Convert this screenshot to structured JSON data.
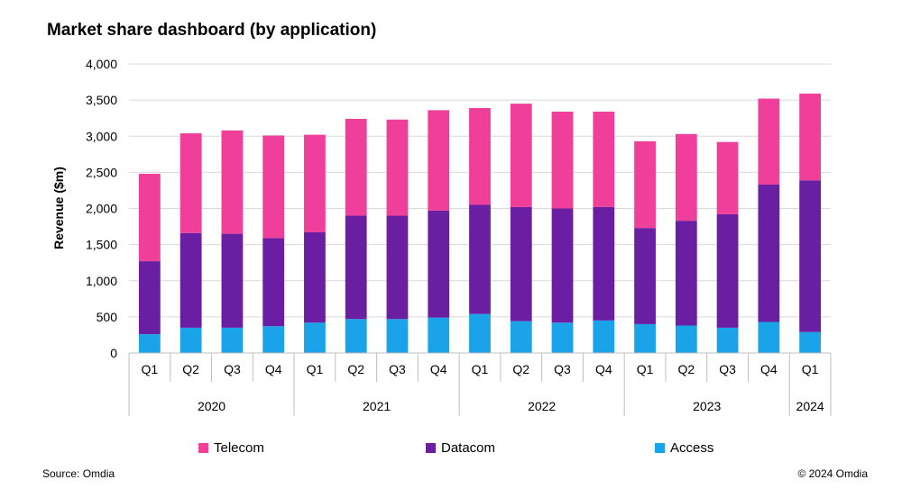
{
  "title": "Market share dashboard (by application)",
  "footer": {
    "source": "Source: Omdia",
    "copyright": "© 2024 Omdia"
  },
  "chart_data": {
    "type": "bar",
    "stacked": true,
    "title": "Market share dashboard (by application)",
    "ylabel": "Revenue ($m)",
    "xlabel": "",
    "ylim": [
      0,
      4000
    ],
    "yticks": [
      0,
      500,
      1000,
      1500,
      2000,
      2500,
      3000,
      3500,
      4000
    ],
    "ytick_labels": [
      "0",
      "500",
      "1,000",
      "1,500",
      "2,000",
      "2,500",
      "3,000",
      "3,500",
      "4,000"
    ],
    "grid": true,
    "legend_position": "bottom",
    "categories": [
      "Q1",
      "Q2",
      "Q3",
      "Q4",
      "Q1",
      "Q2",
      "Q3",
      "Q4",
      "Q1",
      "Q2",
      "Q3",
      "Q4",
      "Q1",
      "Q2",
      "Q3",
      "Q4",
      "Q1"
    ],
    "groups": [
      {
        "label": "2020",
        "count": 4
      },
      {
        "label": "2021",
        "count": 4
      },
      {
        "label": "2022",
        "count": 4
      },
      {
        "label": "2023",
        "count": 4
      },
      {
        "label": "2024",
        "count": 1
      }
    ],
    "series": [
      {
        "name": "Access",
        "color": "#1aa3e8",
        "values": [
          260,
          350,
          350,
          370,
          420,
          470,
          470,
          490,
          540,
          440,
          420,
          450,
          400,
          380,
          350,
          430,
          290
        ]
      },
      {
        "name": "Datacom",
        "color": "#6a1fa3",
        "values": [
          1010,
          1310,
          1300,
          1220,
          1250,
          1430,
          1430,
          1480,
          1510,
          1580,
          1580,
          1570,
          1330,
          1450,
          1570,
          1900,
          2100
        ]
      },
      {
        "name": "Telecom",
        "color": "#ef3f9a",
        "values": [
          1210,
          1380,
          1430,
          1420,
          1350,
          1340,
          1330,
          1390,
          1340,
          1430,
          1340,
          1320,
          1200,
          1200,
          1000,
          1190,
          1200
        ]
      }
    ],
    "legend_order": [
      "Telecom",
      "Datacom",
      "Access"
    ]
  }
}
